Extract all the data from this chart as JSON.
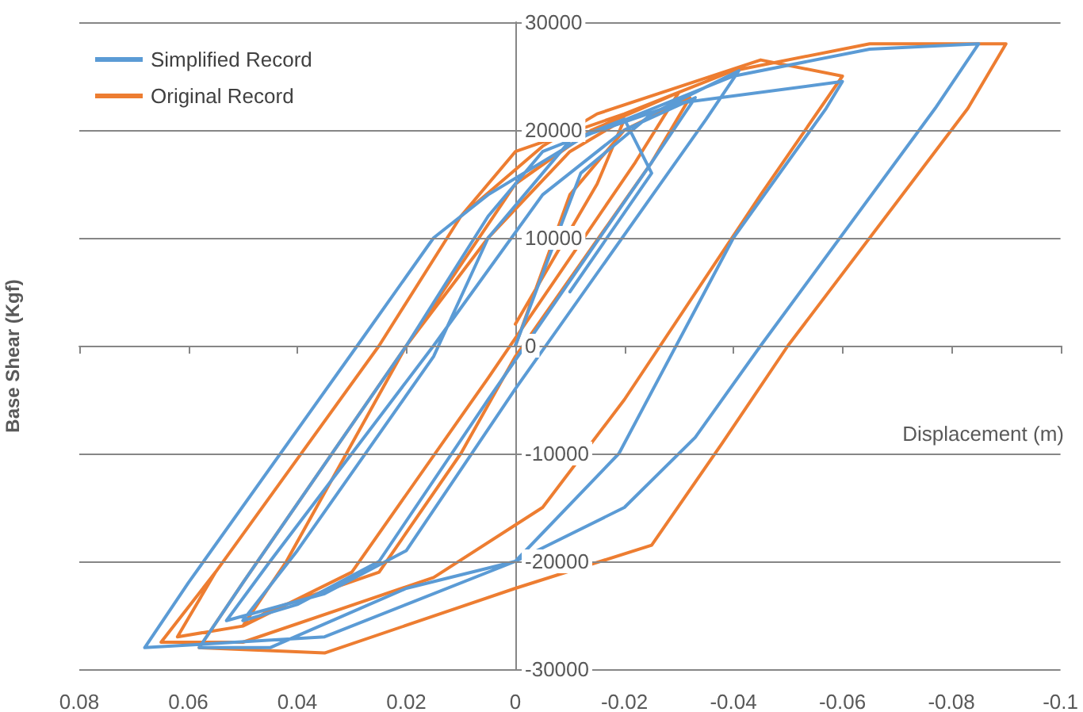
{
  "chart_data": {
    "type": "line",
    "xlabel": "Displacement (m)",
    "ylabel": "Base Shear (Kgf)",
    "xlim": [
      0.08,
      -0.1
    ],
    "xticks": [
      0.08,
      0.06,
      0.04,
      0.02,
      0,
      -0.02,
      -0.04,
      -0.06,
      -0.08,
      -0.1
    ],
    "ylim": [
      -30000,
      30000
    ],
    "yticks": [
      -30000,
      -20000,
      -10000,
      0,
      10000,
      20000,
      30000
    ],
    "grid": "y",
    "legend": "top left",
    "series": [
      {
        "name": "Simplified Record",
        "color": "#5b9bd5",
        "x": [
          0,
          -0.012,
          -0.025,
          -0.041,
          -0.035,
          0.0,
          0.02,
          0.035,
          0.053,
          0.045,
          0.015,
          -0.005,
          -0.02,
          -0.033,
          -0.025,
          0.005,
          0.025,
          0.04,
          0.05,
          0.04,
          0.015,
          0.005,
          -0.01,
          -0.03,
          -0.06,
          -0.057,
          -0.04,
          -0.019,
          0.0,
          0.035,
          0.068,
          0.06,
          0.029,
          0.015,
          0.005,
          -0.013,
          -0.04,
          -0.065,
          -0.085,
          -0.077,
          -0.045,
          -0.033,
          -0.02,
          0.0,
          0.02,
          0.045,
          0.058,
          0.05,
          0.02,
          0.005,
          -0.005,
          -0.02,
          -0.025,
          -0.01
        ],
        "values": [
          0,
          16000,
          21500,
          25500,
          21000,
          -4000,
          -19000,
          -23000,
          -25500,
          -20000,
          0,
          14000,
          20000,
          23000,
          17000,
          -5000,
          -20000,
          -24000,
          -25500,
          -19000,
          -1000,
          10000,
          19000,
          22500,
          24500,
          22000,
          10000,
          -10000,
          -20000,
          -27000,
          -28000,
          -22000,
          0,
          10000,
          14000,
          19500,
          25000,
          27500,
          28000,
          22000,
          0,
          -8500,
          -15000,
          -20000,
          -22500,
          -28000,
          -28000,
          -22000,
          0,
          12000,
          18000,
          21000,
          16000,
          5000
        ]
      },
      {
        "name": "Original Record",
        "color": "#ed7d31",
        "x": [
          0,
          -0.01,
          -0.02,
          -0.032,
          -0.025,
          0.0,
          0.01,
          0.025,
          0.045,
          0.05,
          0.042,
          0.02,
          0.0,
          -0.014,
          -0.03,
          -0.022,
          0.005,
          0.03,
          0.05,
          0.062,
          0.055,
          0.025,
          0.01,
          -0.005,
          -0.015,
          -0.045,
          -0.06,
          -0.045,
          -0.02,
          -0.005,
          0.015,
          0.05,
          0.065,
          0.055,
          0.025,
          0.01,
          0.0,
          -0.02,
          -0.04,
          -0.065,
          -0.09,
          -0.083,
          -0.05,
          -0.038,
          -0.025,
          0.0,
          0.035,
          0.058,
          0.05,
          0.02,
          0.005,
          -0.01,
          -0.02,
          -0.015,
          0.0
        ],
        "values": [
          0,
          14000,
          20000,
          23000,
          17000,
          -1000,
          -10000,
          -21000,
          -24500,
          -26000,
          -20000,
          0,
          15000,
          20000,
          23500,
          17000,
          -3000,
          -21000,
          -26000,
          -27000,
          -21000,
          0,
          12000,
          18500,
          21500,
          26500,
          25000,
          14000,
          -5000,
          -15000,
          -21500,
          -27500,
          -27500,
          -21000,
          0,
          12000,
          18000,
          21500,
          25500,
          28000,
          28000,
          22000,
          0,
          -9000,
          -18500,
          -22500,
          -28500,
          -28000,
          -22000,
          0,
          10000,
          18000,
          21000,
          15000,
          2000
        ]
      }
    ]
  }
}
